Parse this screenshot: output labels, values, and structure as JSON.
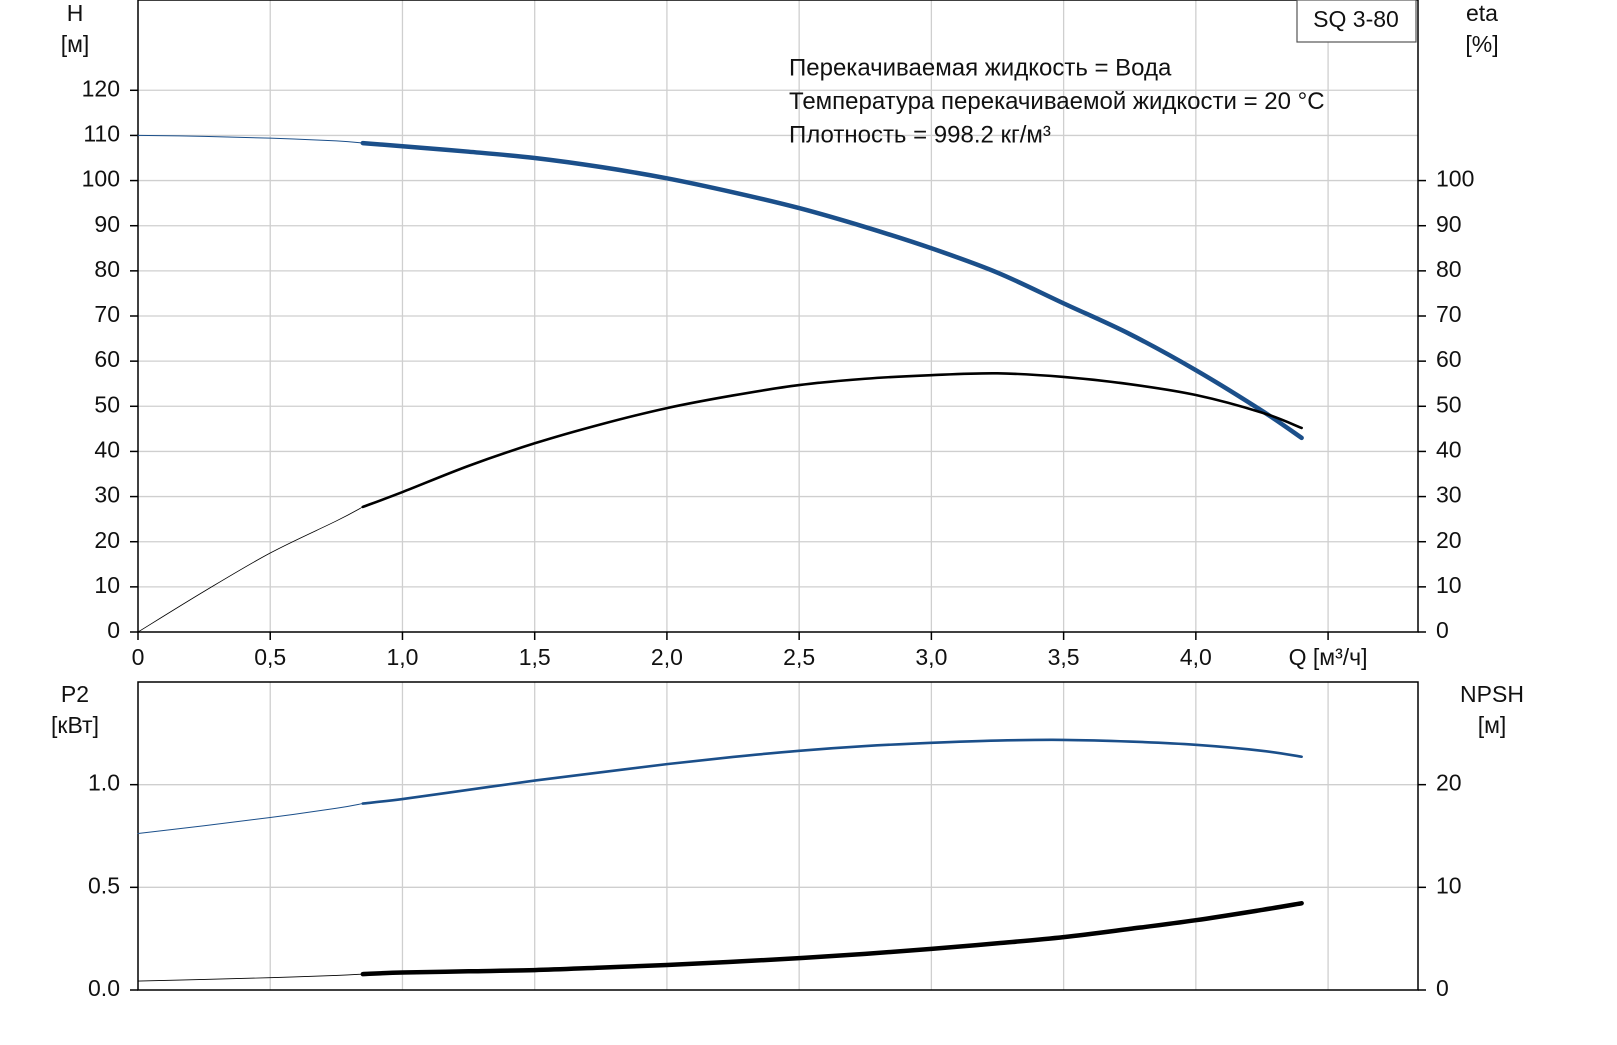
{
  "chart_data": [
    {
      "type": "line",
      "legend_box": "SQ 3-80",
      "annotations": [
        "Перекачиваемая жидкость = Вода",
        "Температура перекачиваемой жидкости = 20 °C",
        "Плотность = 998.2 кг/м³"
      ],
      "y_label": [
        "H",
        "[м]"
      ],
      "y2_label": [
        "eta",
        "[%]"
      ],
      "duty_range_start": 0.85,
      "x": [
        0,
        0.25,
        0.5,
        0.75,
        0.85,
        1.0,
        1.25,
        1.5,
        1.75,
        2.0,
        2.25,
        2.5,
        2.75,
        3.0,
        3.25,
        3.5,
        3.75,
        4.0,
        4.25,
        4.4
      ],
      "xlim": [
        0,
        4.84
      ],
      "xticks": [
        0,
        {
          "value": 0.5,
          "label": "0,5"
        },
        {
          "value": 1.0,
          "label": "1,0"
        },
        {
          "value": 1.5,
          "label": "1,5"
        },
        {
          "value": 2.0,
          "label": "2,0"
        },
        {
          "value": 2.5,
          "label": "2,5"
        },
        {
          "value": 3.0,
          "label": "3,0"
        },
        {
          "value": 3.5,
          "label": "3,5"
        },
        {
          "value": 4.0,
          "label": "4,0"
        },
        {
          "value": 4.5,
          "label": "Q [м³/ч]"
        }
      ],
      "ylim": [
        0,
        140
      ],
      "yticks": [
        0,
        10,
        20,
        30,
        40,
        50,
        60,
        70,
        80,
        90,
        100,
        110,
        120
      ],
      "y2lim": [
        0,
        140
      ],
      "y2ticks": [
        0,
        10,
        20,
        30,
        40,
        50,
        60,
        70,
        80,
        90,
        100
      ],
      "grid": true,
      "series": [
        {
          "color": "#1b4f8a",
          "axis": "y",
          "values": [
            110,
            109.8,
            109.4,
            108.8,
            108.3,
            107.6,
            106.4,
            105,
            103,
            100.5,
            97.4,
            93.9,
            89.7,
            85,
            79.6,
            72.8,
            66,
            58,
            49,
            43
          ]
        },
        {
          "color": "#000000",
          "axis": "y2",
          "values": [
            0,
            9,
            17.5,
            24.6,
            27.7,
            31,
            36.8,
            41.8,
            46,
            49.6,
            52.4,
            54.7,
            56.1,
            56.9,
            57.3,
            56.5,
            54.9,
            52.5,
            48.6,
            45.2
          ]
        }
      ]
    },
    {
      "type": "line",
      "y_label": [
        "P2",
        "[кВт]"
      ],
      "y2_label": [
        "NPSH",
        "[м]"
      ],
      "duty_range_start": 0.85,
      "x": [
        0,
        0.25,
        0.5,
        0.75,
        0.85,
        1.0,
        1.25,
        1.5,
        1.75,
        2.0,
        2.25,
        2.5,
        2.75,
        3.0,
        3.25,
        3.5,
        3.75,
        4.0,
        4.25,
        4.4
      ],
      "xlim": [
        0,
        4.84
      ],
      "ylim": [
        0,
        1.5
      ],
      "yticks": [
        {
          "value": 0,
          "label": "0.0"
        },
        0.5,
        {
          "value": 1,
          "label": "1.0"
        }
      ],
      "y2lim": [
        0,
        30
      ],
      "y2ticks": [
        0,
        10,
        20
      ],
      "grid": true,
      "series": [
        {
          "color": "#1b4f8a",
          "axis": "y",
          "values": [
            0.762,
            0.8,
            0.84,
            0.885,
            0.908,
            0.93,
            0.975,
            1.02,
            1.06,
            1.1,
            1.135,
            1.165,
            1.188,
            1.204,
            1.215,
            1.218,
            1.21,
            1.194,
            1.165,
            1.136
          ]
        },
        {
          "color": "#000000",
          "axis": "y2",
          "values": [
            0.87,
            1.03,
            1.2,
            1.42,
            1.55,
            1.7,
            1.82,
            1.94,
            2.18,
            2.43,
            2.75,
            3.1,
            3.52,
            4.0,
            4.55,
            5.15,
            5.95,
            6.8,
            7.8,
            8.45
          ]
        }
      ]
    }
  ]
}
